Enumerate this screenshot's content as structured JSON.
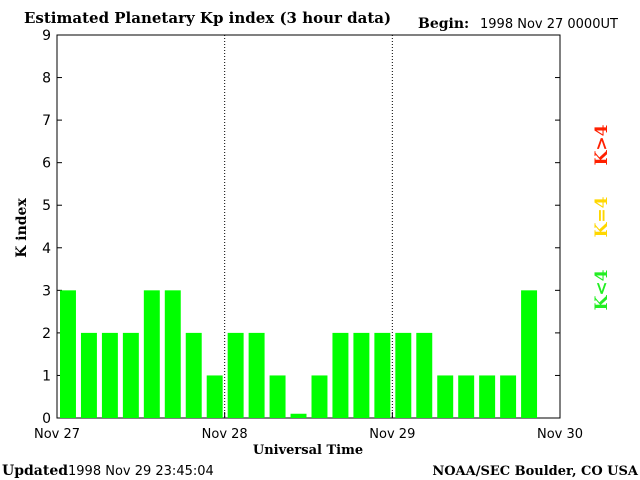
{
  "header": {
    "title": "Estimated Planetary Kp index (3 hour data)",
    "begin_label": "Begin:",
    "begin_value": "1998 Nov 27 0000UT"
  },
  "footer": {
    "updated_label": "Updated",
    "updated_value": "1998 Nov 29 23:45:04",
    "credit": "NOAA/SEC Boulder, CO USA"
  },
  "legend": {
    "items": [
      {
        "label": "K>4",
        "color": "#ff2000"
      },
      {
        "label": "K=4",
        "color": "#ffd700"
      },
      {
        "label": "K<4",
        "color": "#22ee22"
      }
    ]
  },
  "chart_data": {
    "type": "bar",
    "title": "Estimated Planetary Kp index (3 hour data)",
    "xlabel": "Universal Time",
    "ylabel": "K index",
    "ylim": [
      0,
      9
    ],
    "yticks": [
      "0",
      "1",
      "2",
      "3",
      "4",
      "5",
      "6",
      "7",
      "8",
      "9"
    ],
    "xticks": [
      "Nov 27",
      "Nov 28",
      "Nov 29",
      "Nov 30"
    ],
    "day_separators": [
      "Nov 28",
      "Nov 29"
    ],
    "bar_color": "#00ff00",
    "values": [
      3,
      2,
      2,
      2,
      3,
      3,
      2,
      1,
      2,
      2,
      1,
      0.1,
      1,
      2,
      2,
      2,
      2,
      2,
      1,
      1,
      1,
      1,
      3
    ]
  }
}
